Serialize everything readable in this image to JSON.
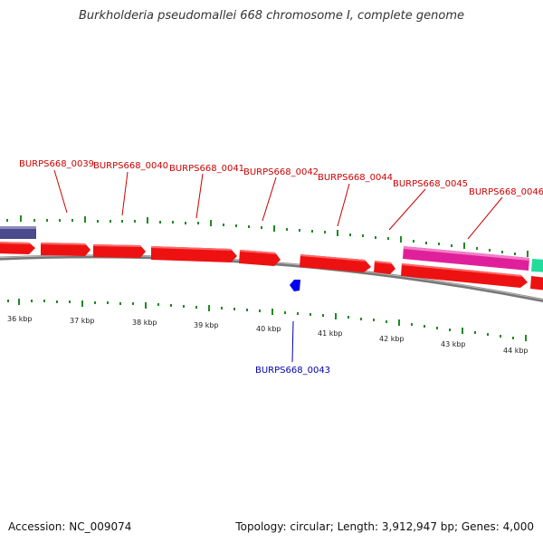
{
  "title": "Burkholderia pseudomallei 668 chromosome I, complete genome",
  "footer": {
    "accession": "Accession: NC_009074",
    "summary": "Topology: circular; Length: 3,912,947 bp; Genes: 4,000"
  },
  "colors": {
    "forward_gene": "#ee1111",
    "reverse_gene": "#0000ee",
    "purple_feature": "#4a4a8c",
    "magenta_feature": "#e0209a",
    "green_feature": "#22dd99",
    "backbone": "#888888",
    "tick": "#228822",
    "forward_label": "#cc0000",
    "reverse_label": "#0000aa"
  },
  "scale_labels": [
    "36 kbp",
    "37 kbp",
    "38 kbp",
    "39 kbp",
    "40 kbp",
    "41 kbp",
    "42 kbp",
    "43 kbp",
    "44 kbp"
  ],
  "gene_labels_forward": [
    "BURPS668_0039",
    "BURPS668_0040",
    "BURPS668_0041",
    "BURPS668_0042",
    "BURPS668_0044",
    "BURPS668_0045",
    "BURPS668_0046"
  ],
  "gene_labels_reverse": [
    "BURPS668_0043"
  ]
}
